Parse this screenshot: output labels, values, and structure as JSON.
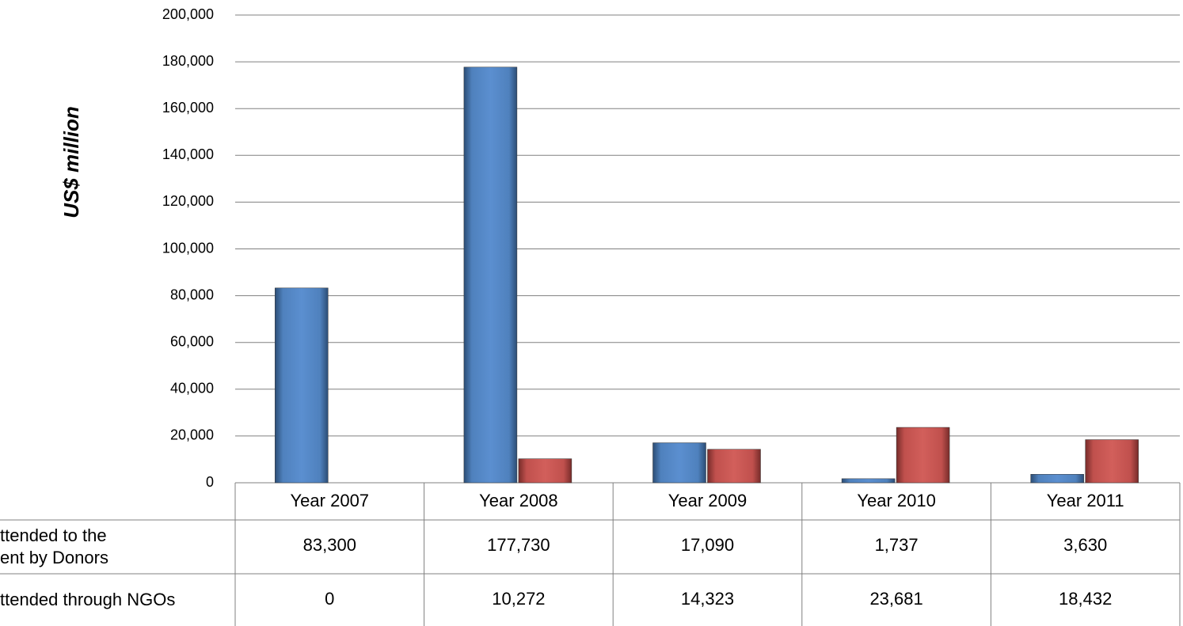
{
  "chart_data": {
    "type": "bar",
    "y_label": "US$ million",
    "categories": [
      "Year 2007",
      "Year 2008",
      "Year 2009",
      "Year 2010",
      "Year 2011"
    ],
    "series": [
      {
        "name": "ttended to the ent by Donors",
        "color": "#4f81bd",
        "values": [
          83300,
          177730,
          17090,
          1737,
          3630
        ],
        "value_labels": [
          "83,300",
          "177,730",
          "17,090",
          "1,737",
          "3,630"
        ]
      },
      {
        "name": "ttended through NGOs",
        "color": "#c0504d",
        "values": [
          0,
          10272,
          14323,
          23681,
          18432
        ],
        "value_labels": [
          "0",
          "10,272",
          "14,323",
          "23,681",
          "18,432"
        ]
      }
    ],
    "ylim": [
      0,
      200000
    ],
    "yticks": [
      0,
      {
        "value": 20000,
        "label": "20,000"
      },
      {
        "value": 40000,
        "label": "40,000"
      },
      {
        "value": 60000,
        "label": "60,000"
      },
      {
        "value": 80000,
        "label": "80,000"
      },
      {
        "value": 100000,
        "label": "100,000"
      },
      {
        "value": 120000,
        "label": "120,000"
      },
      {
        "value": 140000,
        "label": "140,000"
      },
      {
        "value": 160000,
        "label": "160,000"
      },
      {
        "value": 180000,
        "label": "180,000"
      },
      {
        "value": 200000,
        "label": "200,000"
      }
    ],
    "grid": true
  }
}
